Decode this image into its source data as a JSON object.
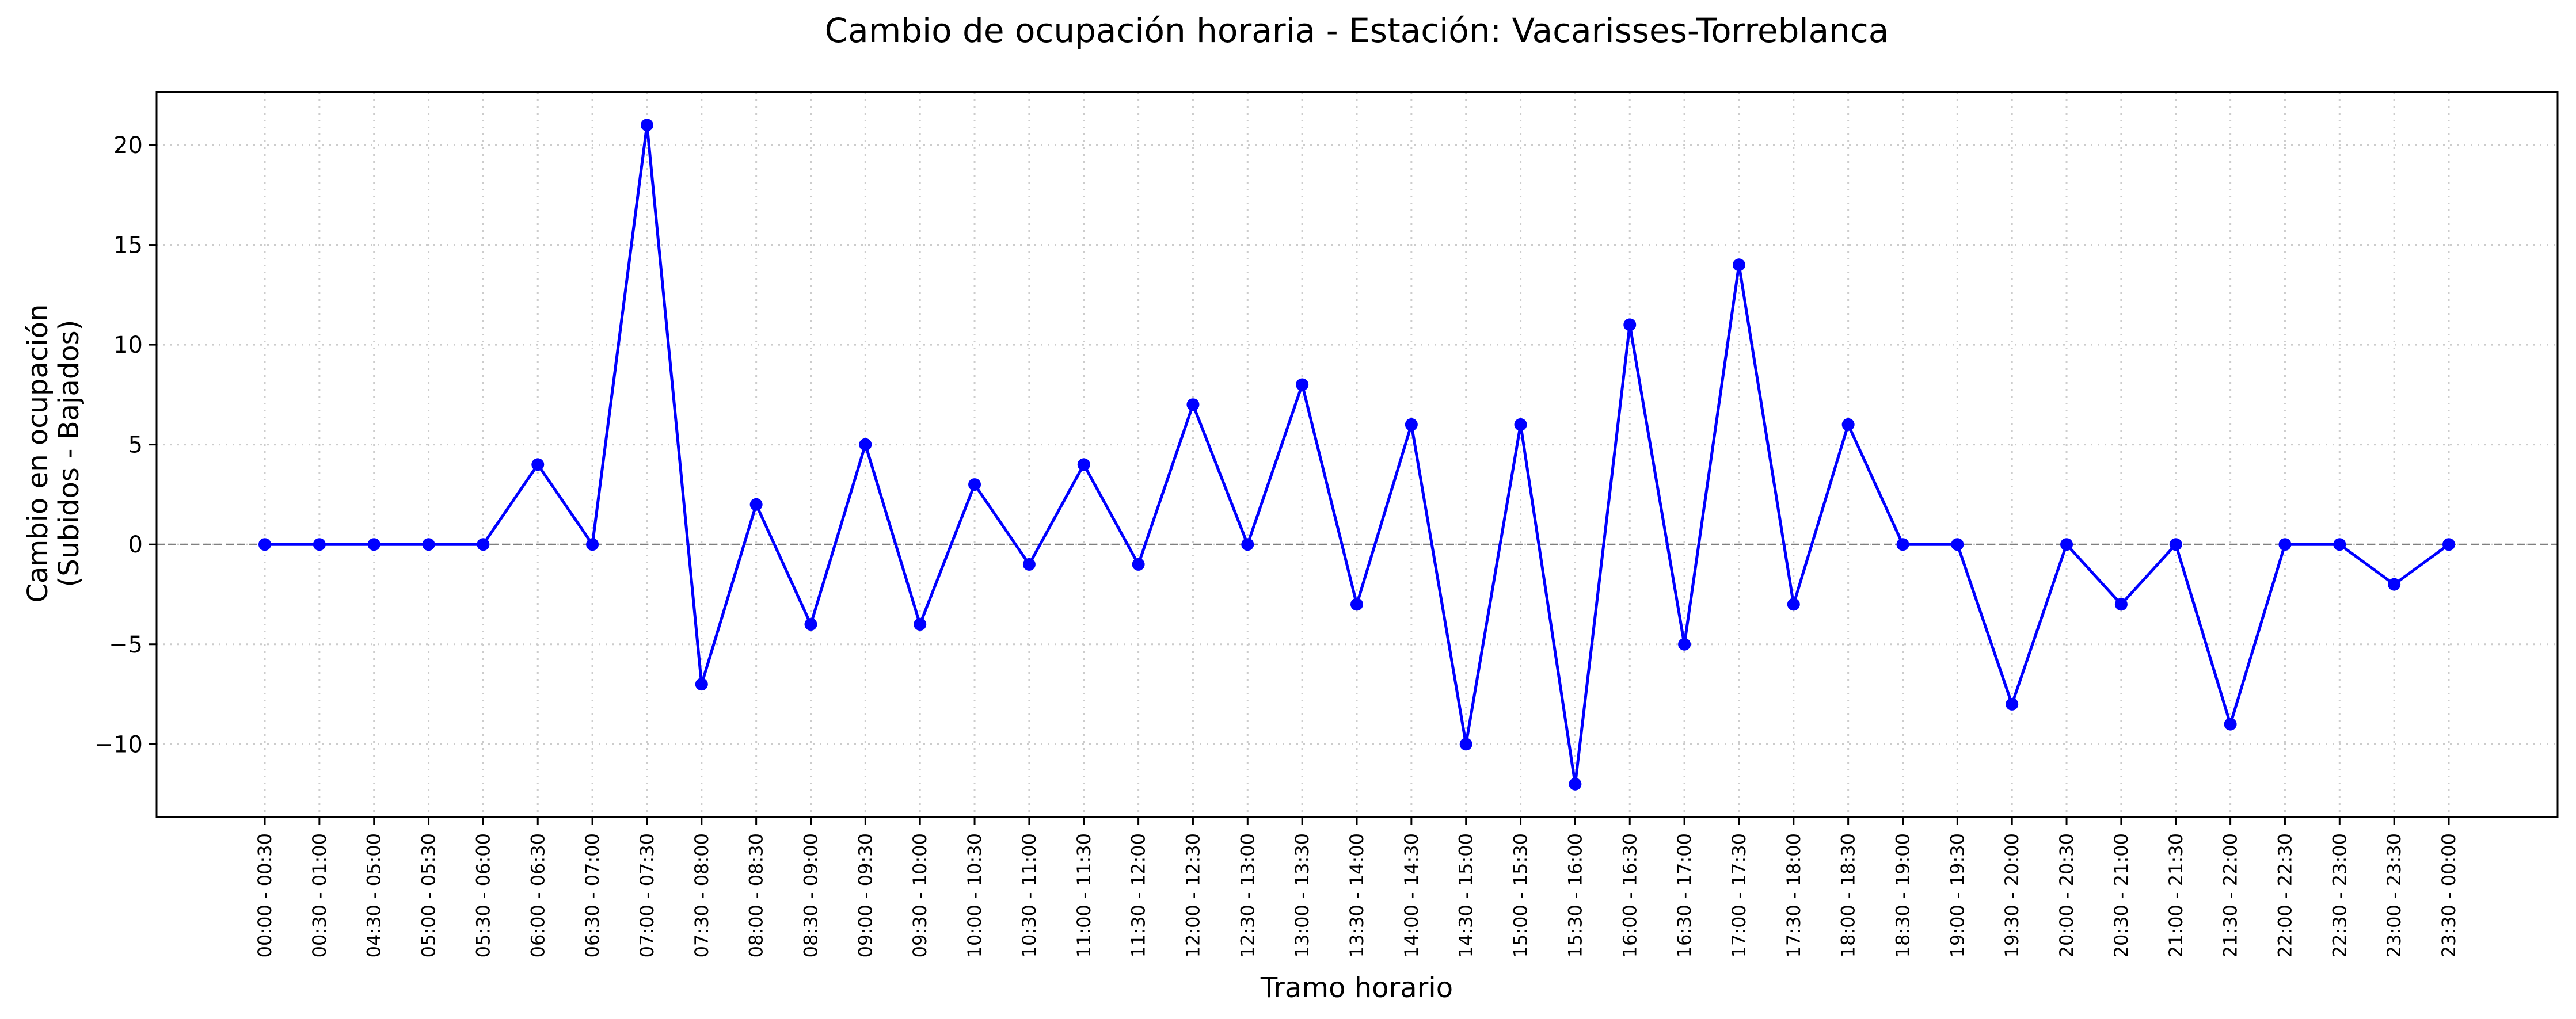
{
  "chart_data": {
    "type": "line",
    "title": "Cambio de ocupación horaria - Estación: Vacarisses-Torreblanca",
    "xlabel": "Tramo horario",
    "ylabel_lines": [
      "Cambio en ocupación",
      "(Subidos - Bajados)"
    ],
    "categories": [
      "00:00 - 00:30",
      "00:30 - 01:00",
      "04:30 - 05:00",
      "05:00 - 05:30",
      "05:30 - 06:00",
      "06:00 - 06:30",
      "06:30 - 07:00",
      "07:00 - 07:30",
      "07:30 - 08:00",
      "08:00 - 08:30",
      "08:30 - 09:00",
      "09:00 - 09:30",
      "09:30 - 10:00",
      "10:00 - 10:30",
      "10:30 - 11:00",
      "11:00 - 11:30",
      "11:30 - 12:00",
      "12:00 - 12:30",
      "12:30 - 13:00",
      "13:00 - 13:30",
      "13:30 - 14:00",
      "14:00 - 14:30",
      "14:30 - 15:00",
      "15:00 - 15:30",
      "15:30 - 16:00",
      "16:00 - 16:30",
      "16:30 - 17:00",
      "17:00 - 17:30",
      "17:30 - 18:00",
      "18:00 - 18:30",
      "18:30 - 19:00",
      "19:00 - 19:30",
      "19:30 - 20:00",
      "20:00 - 20:30",
      "20:30 - 21:00",
      "21:00 - 21:30",
      "21:30 - 22:00",
      "22:00 - 22:30",
      "22:30 - 23:00",
      "23:00 - 23:30",
      "23:30 - 00:00"
    ],
    "series": [
      {
        "values": [
          0,
          0,
          0,
          0,
          0,
          4,
          0,
          21,
          -7,
          2,
          -4,
          5,
          -4,
          3,
          -1,
          4,
          -1,
          7,
          0,
          8,
          -3,
          6,
          -10,
          6,
          -12,
          11,
          -5,
          14,
          -3,
          6,
          0,
          0,
          -8,
          0,
          -3,
          0,
          -9,
          0,
          0,
          -2,
          0
        ],
        "color": "#0000ff",
        "marker": "circle"
      }
    ],
    "yticks": [
      -10,
      -5,
      0,
      5,
      10,
      15,
      20
    ],
    "ylim": [
      -13.65,
      22.65
    ],
    "grid": true,
    "reference_line": {
      "y": 0,
      "color": "#808080",
      "style": "dashed"
    }
  }
}
